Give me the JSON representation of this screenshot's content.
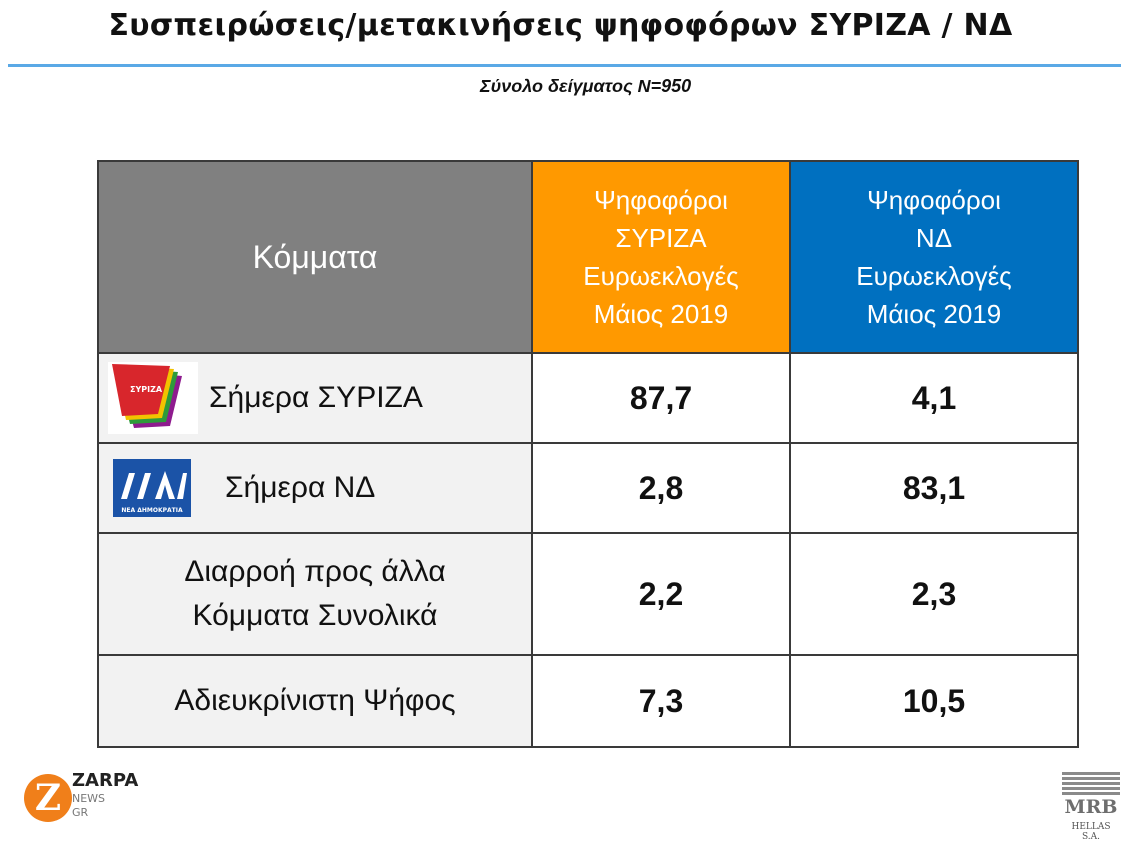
{
  "title": "Συσπειρώσεις/μετακινήσεις ψηφοφόρων ΣΥΡΙΖΑ / ΝΔ",
  "subtitle": "Σύνολο δείγματος Ν=950",
  "table": {
    "header_party": "Κόμματα",
    "header_syriza": [
      "Ψηφοφόροι",
      "ΣΥΡΙΖΑ",
      "Ευρωεκλογές",
      "Μάιος 2019"
    ],
    "header_nd": [
      "Ψηφοφόροι",
      "ΝΔ",
      "Ευρωεκλογές",
      "Μάιος 2019"
    ],
    "rows": [
      {
        "party": "Σήμερα ΣΥΡΙΖΑ",
        "syriza": "87,7",
        "nd": "4,1"
      },
      {
        "party": "Σήμερα ΝΔ",
        "syriza": "2,8",
        "nd": "83,1"
      },
      {
        "party_lines": [
          "Διαρροή προς άλλα",
          "Κόμματα Συνολικά"
        ],
        "syriza": "2,2",
        "nd": "2,3"
      },
      {
        "party": "Αδιευκρίνιστη Ψήφος",
        "syriza": "7,3",
        "nd": "10,5"
      }
    ]
  },
  "logos": {
    "syriza_logo_text": "ΣΥΡΙΖΑ",
    "nd_logo_text": "ΝΕΑ ΔΗΜΟΚΡΑΤΙΑ",
    "zarpa_text": "ZARPA",
    "zarpa_news": "NEWS",
    "zarpa_gr": "GR",
    "mrb_text": "MRB",
    "mrb_sub": "HELLAS S.A."
  },
  "colors": {
    "header_party_bg": "#808080",
    "header_syriza_bg": "#ff9900",
    "header_nd_bg": "#0070c0",
    "title_rule": "#5aa9e6"
  }
}
